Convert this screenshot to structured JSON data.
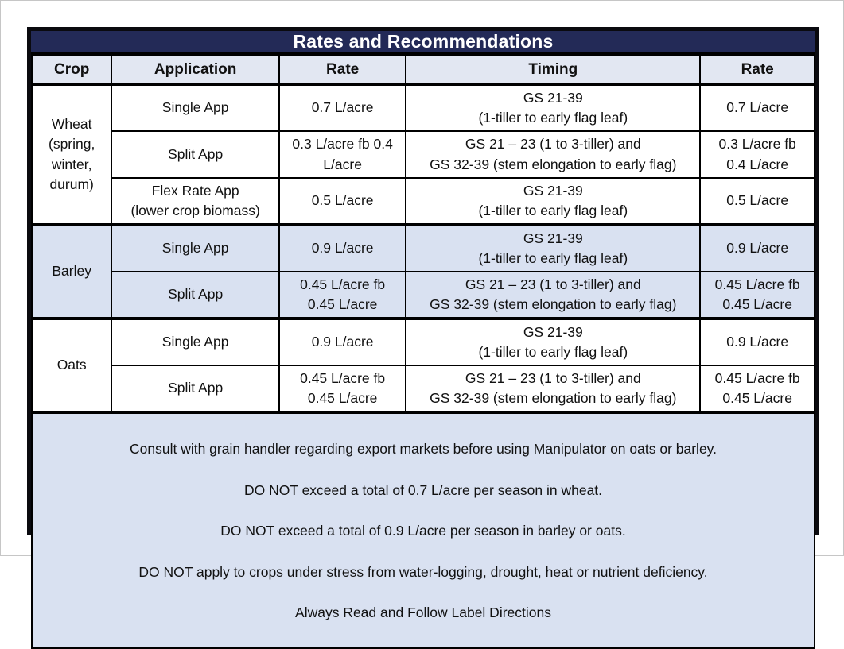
{
  "title": "Rates and Recommendations",
  "columns": [
    "Crop",
    "Application",
    "Rate",
    "Timing",
    "Rate"
  ],
  "colors": {
    "navy": "#232a57",
    "header_blue": "#e2e7f2",
    "light_blue": "#d9e1f1",
    "border_black": "#000000",
    "title_text": "#ffffff",
    "text": "#111111"
  },
  "crops": [
    {
      "name": "Wheat\n(spring,\nwinter,\ndurum)",
      "rows": [
        {
          "application": "Single App",
          "rate": "0.7 L/acre",
          "timing": "GS 21-39\n(1-tiller to early flag leaf)",
          "rate_right": "0.7 L/acre"
        },
        {
          "application": "Split App",
          "rate": "0.3 L/acre fb 0.4\nL/acre",
          "timing": "GS 21 – 23 (1 to 3-tiller) and\nGS 32-39 (stem elongation to early flag)",
          "rate_right": "0.3 L/acre fb\n0.4 L/acre"
        },
        {
          "application": "Flex Rate App\n(lower crop biomass)",
          "rate": "0.5 L/acre",
          "timing": "GS 21-39\n(1-tiller to early flag leaf)",
          "rate_right": "0.5 L/acre"
        }
      ]
    },
    {
      "name": "Barley",
      "rows": [
        {
          "application": "Single App",
          "rate": "0.9 L/acre",
          "timing": "GS 21-39\n(1-tiller to early flag leaf)",
          "rate_right": "0.9 L/acre"
        },
        {
          "application": "Split App",
          "rate": "0.45 L/acre fb\n0.45 L/acre",
          "timing": "GS 21 – 23 (1 to 3-tiller) and\nGS 32-39 (stem elongation to early flag)",
          "rate_right": "0.45 L/acre fb\n0.45 L/acre"
        }
      ]
    },
    {
      "name": "Oats",
      "rows": [
        {
          "application": "Single App",
          "rate": "0.9 L/acre",
          "timing": "GS 21-39\n(1-tiller to early flag leaf)",
          "rate_right": "0.9 L/acre"
        },
        {
          "application": "Split App",
          "rate": "0.45 L/acre fb\n0.45 L/acre",
          "timing": "GS 21 – 23 (1 to 3-tiller) and\nGS 32-39 (stem elongation to early flag)",
          "rate_right": "0.45 L/acre fb\n0.45 L/acre"
        }
      ]
    }
  ],
  "footer_lines": [
    "Consult with grain handler regarding export markets before using Manipulator on oats or barley.",
    "DO NOT exceed a total of 0.7 L/acre per season in wheat.",
    "DO NOT exceed a total of 0.9 L/acre per season in barley or oats.",
    "DO NOT apply to crops under stress from water-logging, drought, heat or nutrient deficiency.",
    "Always Read and Follow Label Directions"
  ]
}
